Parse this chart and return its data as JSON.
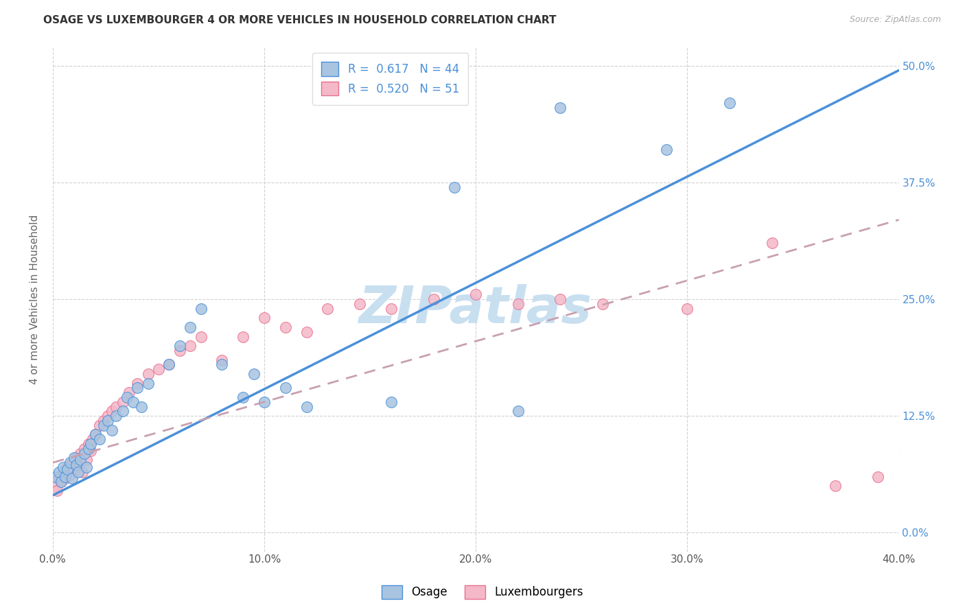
{
  "title": "OSAGE VS LUXEMBOURGER 4 OR MORE VEHICLES IN HOUSEHOLD CORRELATION CHART",
  "source": "Source: ZipAtlas.com",
  "ylabel": "4 or more Vehicles in Household",
  "xlabel_ticks": [
    "0.0%",
    "10.0%",
    "20.0%",
    "30.0%",
    "40.0%"
  ],
  "xlabel_tick_vals": [
    0.0,
    0.1,
    0.2,
    0.3,
    0.4
  ],
  "ylabel_ticks": [
    "0.0%",
    "12.5%",
    "25.0%",
    "37.5%",
    "50.0%"
  ],
  "ylabel_tick_vals": [
    0.0,
    0.125,
    0.25,
    0.375,
    0.5
  ],
  "xlim": [
    0.0,
    0.4
  ],
  "ylim": [
    -0.02,
    0.52
  ],
  "legend_label1": "Osage",
  "legend_label2": "Luxembourgers",
  "r1": "0.617",
  "n1": "44",
  "r2": "0.520",
  "n2": "51",
  "color1": "#a8c4e0",
  "color2": "#f4b8c8",
  "line_color1": "#4a90d9",
  "line_color2": "#e87090",
  "line_color2_dashed": "#c8a0b0",
  "watermark": "ZIPatlas",
  "watermark_color": "#c8dff0",
  "blue_line_x0": 0.0,
  "blue_line_y0": 0.04,
  "blue_line_x1": 0.4,
  "blue_line_y1": 0.495,
  "pink_line_x0": 0.0,
  "pink_line_y0": 0.075,
  "pink_line_x1": 0.4,
  "pink_line_y1": 0.335,
  "osage_x": [
    0.001,
    0.003,
    0.004,
    0.005,
    0.006,
    0.007,
    0.008,
    0.009,
    0.01,
    0.011,
    0.012,
    0.013,
    0.015,
    0.016,
    0.017,
    0.018,
    0.02,
    0.022,
    0.024,
    0.026,
    0.028,
    0.03,
    0.033,
    0.035,
    0.038,
    0.04,
    0.042,
    0.045,
    0.055,
    0.06,
    0.065,
    0.07,
    0.08,
    0.09,
    0.095,
    0.1,
    0.11,
    0.12,
    0.16,
    0.19,
    0.22,
    0.24,
    0.29,
    0.32
  ],
  "osage_y": [
    0.06,
    0.065,
    0.055,
    0.07,
    0.06,
    0.068,
    0.075,
    0.058,
    0.08,
    0.072,
    0.065,
    0.078,
    0.085,
    0.07,
    0.09,
    0.095,
    0.105,
    0.1,
    0.115,
    0.12,
    0.11,
    0.125,
    0.13,
    0.145,
    0.14,
    0.155,
    0.135,
    0.16,
    0.18,
    0.2,
    0.22,
    0.24,
    0.18,
    0.145,
    0.17,
    0.14,
    0.155,
    0.135,
    0.14,
    0.37,
    0.13,
    0.455,
    0.41,
    0.46
  ],
  "lux_x": [
    0.001,
    0.002,
    0.003,
    0.004,
    0.005,
    0.006,
    0.007,
    0.008,
    0.009,
    0.01,
    0.011,
    0.012,
    0.013,
    0.014,
    0.015,
    0.016,
    0.017,
    0.018,
    0.019,
    0.02,
    0.022,
    0.024,
    0.026,
    0.028,
    0.03,
    0.033,
    0.036,
    0.04,
    0.045,
    0.05,
    0.055,
    0.06,
    0.065,
    0.07,
    0.08,
    0.09,
    0.1,
    0.11,
    0.12,
    0.13,
    0.145,
    0.16,
    0.18,
    0.2,
    0.22,
    0.24,
    0.26,
    0.3,
    0.34,
    0.37,
    0.39
  ],
  "lux_y": [
    0.05,
    0.045,
    0.06,
    0.055,
    0.065,
    0.058,
    0.07,
    0.062,
    0.075,
    0.068,
    0.08,
    0.072,
    0.085,
    0.065,
    0.09,
    0.078,
    0.095,
    0.088,
    0.1,
    0.105,
    0.115,
    0.12,
    0.125,
    0.13,
    0.135,
    0.14,
    0.15,
    0.16,
    0.17,
    0.175,
    0.18,
    0.195,
    0.2,
    0.21,
    0.185,
    0.21,
    0.23,
    0.22,
    0.215,
    0.24,
    0.245,
    0.24,
    0.25,
    0.255,
    0.245,
    0.25,
    0.245,
    0.24,
    0.31,
    0.05,
    0.06
  ]
}
